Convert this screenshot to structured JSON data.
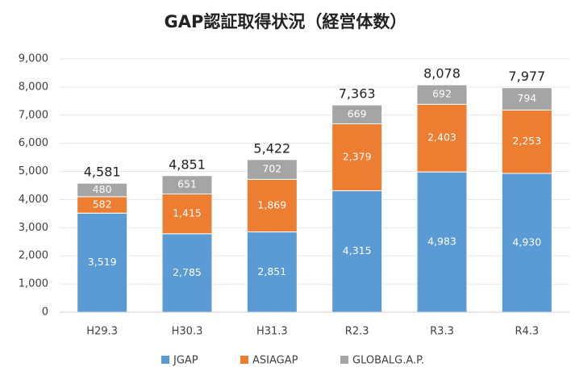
{
  "chart_data": {
    "type": "stacked_bar",
    "title": "GAP認証取得状況（経営体数）",
    "categories": [
      "H29.3",
      "H30.3",
      "H31.3",
      "R2.3",
      "R3.3",
      "R4.3"
    ],
    "series": [
      {
        "name": "JGAP",
        "color": "#5b9bd5",
        "values": [
          3519,
          2785,
          2851,
          4315,
          4983,
          4930
        ],
        "value_labels": [
          "3,519",
          "2,785",
          "2,851",
          "4,315",
          "4,983",
          "4,930"
        ]
      },
      {
        "name": "ASIAGAP",
        "color": "#ed7d31",
        "values": [
          582,
          1415,
          1869,
          2379,
          2403,
          2253
        ],
        "value_labels": [
          "582",
          "1,415",
          "1,869",
          "2,379",
          "2,403",
          "2,253"
        ]
      },
      {
        "name": "GLOBALG.A.P.",
        "color": "#a5a5a5",
        "values": [
          480,
          651,
          702,
          669,
          692,
          794
        ],
        "value_labels": [
          "480",
          "651",
          "702",
          "669",
          "692",
          "794"
        ]
      }
    ],
    "total_labels": [
      "4,581",
      "4,851",
      "5,422",
      "7,363",
      "8,078",
      "7,977"
    ],
    "ylim": [
      0,
      9000
    ],
    "yticks": [
      0,
      {
        "value": 1000,
        "label": "1,000"
      },
      {
        "value": 2000,
        "label": "2,000"
      },
      {
        "value": 3000,
        "label": "3,000"
      },
      {
        "value": 4000,
        "label": "4,000"
      },
      {
        "value": 5000,
        "label": "5,000"
      },
      {
        "value": 6000,
        "label": "6,000"
      },
      {
        "value": 7000,
        "label": "7,000"
      },
      {
        "value": 8000,
        "label": "8,000"
      },
      {
        "value": 9000,
        "label": "9,000"
      }
    ],
    "grid": true,
    "legend": "bottom"
  }
}
